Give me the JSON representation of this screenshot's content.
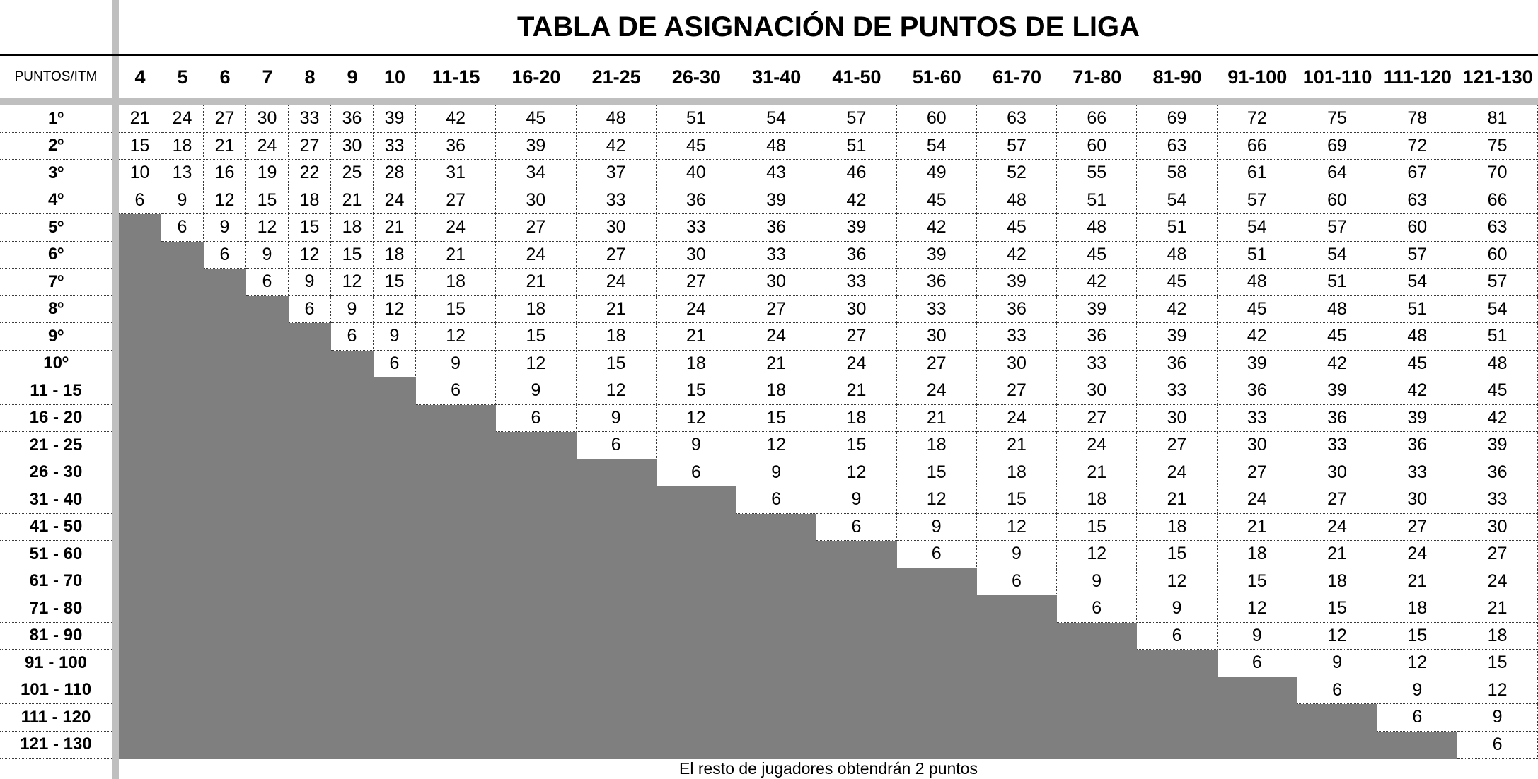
{
  "title": "TABLA DE ASIGNACIÓN DE PUNTOS DE LIGA",
  "corner_label": "PUNTOS/ITM",
  "footer_note": "El resto de jugadores obtendrán 2 puntos",
  "colors": {
    "filled_cell": "#7f7f7f",
    "divider_bar": "#bfbfbf",
    "grid_dots": "#3a3a3a",
    "text": "#000000",
    "background": "#ffffff"
  },
  "table": {
    "columns": [
      "4",
      "5",
      "6",
      "7",
      "8",
      "9",
      "10",
      "11-15",
      "16-20",
      "21-25",
      "26-30",
      "31-40",
      "41-50",
      "51-60",
      "61-70",
      "71-80",
      "81-90",
      "91-100",
      "101-110",
      "111-120",
      "121-130"
    ],
    "rows": [
      {
        "label": "1º",
        "values": [
          21,
          24,
          27,
          30,
          33,
          36,
          39,
          42,
          45,
          48,
          51,
          54,
          57,
          60,
          63,
          66,
          69,
          72,
          75,
          78,
          81
        ]
      },
      {
        "label": "2º",
        "values": [
          15,
          18,
          21,
          24,
          27,
          30,
          33,
          36,
          39,
          42,
          45,
          48,
          51,
          54,
          57,
          60,
          63,
          66,
          69,
          72,
          75
        ]
      },
      {
        "label": "3º",
        "values": [
          10,
          13,
          16,
          19,
          22,
          25,
          28,
          31,
          34,
          37,
          40,
          43,
          46,
          49,
          52,
          55,
          58,
          61,
          64,
          67,
          70
        ]
      },
      {
        "label": "4º",
        "values": [
          6,
          9,
          12,
          15,
          18,
          21,
          24,
          27,
          30,
          33,
          36,
          39,
          42,
          45,
          48,
          51,
          54,
          57,
          60,
          63,
          66
        ]
      },
      {
        "label": "5º",
        "values": [
          null,
          6,
          9,
          12,
          15,
          18,
          21,
          24,
          27,
          30,
          33,
          36,
          39,
          42,
          45,
          48,
          51,
          54,
          57,
          60,
          63
        ]
      },
      {
        "label": "6º",
        "values": [
          null,
          null,
          6,
          9,
          12,
          15,
          18,
          21,
          24,
          27,
          30,
          33,
          36,
          39,
          42,
          45,
          48,
          51,
          54,
          57,
          60
        ]
      },
      {
        "label": "7º",
        "values": [
          null,
          null,
          null,
          6,
          9,
          12,
          15,
          18,
          21,
          24,
          27,
          30,
          33,
          36,
          39,
          42,
          45,
          48,
          51,
          54,
          57
        ]
      },
      {
        "label": "8º",
        "values": [
          null,
          null,
          null,
          null,
          6,
          9,
          12,
          15,
          18,
          21,
          24,
          27,
          30,
          33,
          36,
          39,
          42,
          45,
          48,
          51,
          54
        ]
      },
      {
        "label": "9º",
        "values": [
          null,
          null,
          null,
          null,
          null,
          6,
          9,
          12,
          15,
          18,
          21,
          24,
          27,
          30,
          33,
          36,
          39,
          42,
          45,
          48,
          51
        ]
      },
      {
        "label": "10º",
        "values": [
          null,
          null,
          null,
          null,
          null,
          null,
          6,
          9,
          12,
          15,
          18,
          21,
          24,
          27,
          30,
          33,
          36,
          39,
          42,
          45,
          48
        ]
      },
      {
        "label": "11 - 15",
        "values": [
          null,
          null,
          null,
          null,
          null,
          null,
          null,
          6,
          9,
          12,
          15,
          18,
          21,
          24,
          27,
          30,
          33,
          36,
          39,
          42,
          45
        ]
      },
      {
        "label": "16 - 20",
        "values": [
          null,
          null,
          null,
          null,
          null,
          null,
          null,
          null,
          6,
          9,
          12,
          15,
          18,
          21,
          24,
          27,
          30,
          33,
          36,
          39,
          42
        ]
      },
      {
        "label": "21 - 25",
        "values": [
          null,
          null,
          null,
          null,
          null,
          null,
          null,
          null,
          null,
          6,
          9,
          12,
          15,
          18,
          21,
          24,
          27,
          30,
          33,
          36,
          39
        ]
      },
      {
        "label": "26 - 30",
        "values": [
          null,
          null,
          null,
          null,
          null,
          null,
          null,
          null,
          null,
          null,
          6,
          9,
          12,
          15,
          18,
          21,
          24,
          27,
          30,
          33,
          36
        ]
      },
      {
        "label": "31 - 40",
        "values": [
          null,
          null,
          null,
          null,
          null,
          null,
          null,
          null,
          null,
          null,
          null,
          6,
          9,
          12,
          15,
          18,
          21,
          24,
          27,
          30,
          33
        ]
      },
      {
        "label": "41 - 50",
        "values": [
          null,
          null,
          null,
          null,
          null,
          null,
          null,
          null,
          null,
          null,
          null,
          null,
          6,
          9,
          12,
          15,
          18,
          21,
          24,
          27,
          30
        ]
      },
      {
        "label": "51 - 60",
        "values": [
          null,
          null,
          null,
          null,
          null,
          null,
          null,
          null,
          null,
          null,
          null,
          null,
          null,
          6,
          9,
          12,
          15,
          18,
          21,
          24,
          27
        ]
      },
      {
        "label": "61 - 70",
        "values": [
          null,
          null,
          null,
          null,
          null,
          null,
          null,
          null,
          null,
          null,
          null,
          null,
          null,
          null,
          6,
          9,
          12,
          15,
          18,
          21,
          24
        ]
      },
      {
        "label": "71 - 80",
        "values": [
          null,
          null,
          null,
          null,
          null,
          null,
          null,
          null,
          null,
          null,
          null,
          null,
          null,
          null,
          null,
          6,
          9,
          12,
          15,
          18,
          21
        ]
      },
      {
        "label": "81 - 90",
        "values": [
          null,
          null,
          null,
          null,
          null,
          null,
          null,
          null,
          null,
          null,
          null,
          null,
          null,
          null,
          null,
          null,
          6,
          9,
          12,
          15,
          18
        ]
      },
      {
        "label": "91 - 100",
        "values": [
          null,
          null,
          null,
          null,
          null,
          null,
          null,
          null,
          null,
          null,
          null,
          null,
          null,
          null,
          null,
          null,
          null,
          6,
          9,
          12,
          15
        ]
      },
      {
        "label": "101 - 110",
        "values": [
          null,
          null,
          null,
          null,
          null,
          null,
          null,
          null,
          null,
          null,
          null,
          null,
          null,
          null,
          null,
          null,
          null,
          null,
          6,
          9,
          12
        ]
      },
      {
        "label": "111 - 120",
        "values": [
          null,
          null,
          null,
          null,
          null,
          null,
          null,
          null,
          null,
          null,
          null,
          null,
          null,
          null,
          null,
          null,
          null,
          null,
          null,
          6,
          9
        ]
      },
      {
        "label": "121 - 130",
        "values": [
          null,
          null,
          null,
          null,
          null,
          null,
          null,
          null,
          null,
          null,
          null,
          null,
          null,
          null,
          null,
          null,
          null,
          null,
          null,
          null,
          6
        ]
      }
    ]
  }
}
